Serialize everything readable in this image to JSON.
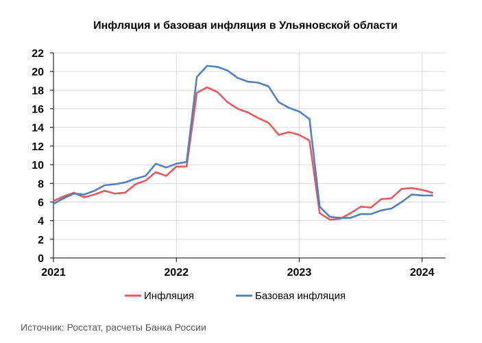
{
  "chart_data": {
    "type": "line",
    "title": "Инфляция и базовая инфляция в Ульяновской области",
    "xlabel": "",
    "ylabel": "",
    "ylim": [
      0,
      22
    ],
    "y_ticks": [
      "0",
      "2",
      "4",
      "6",
      "8",
      "10",
      "12",
      "14",
      "16",
      "18",
      "20",
      "22"
    ],
    "x_ticks": [
      {
        "label": "2021",
        "x": 0
      },
      {
        "label": "2022",
        "x": 12
      },
      {
        "label": "2023",
        "x": 24
      },
      {
        "label": "2024",
        "x": 36
      }
    ],
    "xlim": [
      0,
      38.3
    ],
    "grid": {
      "horizontal": true,
      "vertical": true
    },
    "legend_position": "bottom",
    "x": [
      0,
      1,
      2,
      3,
      4,
      5,
      6,
      7,
      8,
      9,
      10,
      11,
      12,
      13,
      14,
      15,
      16,
      17,
      18,
      19,
      20,
      21,
      22,
      23,
      24,
      25,
      26,
      27,
      28,
      29,
      30,
      31,
      32,
      33,
      34,
      35,
      36,
      37
    ],
    "series": [
      {
        "name": "Инфляция",
        "color": "#e8585f",
        "values": [
          6.1,
          6.6,
          7.0,
          6.5,
          6.8,
          7.2,
          6.9,
          7.0,
          7.9,
          8.3,
          9.2,
          8.8,
          9.8,
          9.8,
          17.7,
          18.3,
          17.8,
          16.7,
          16.0,
          15.6,
          15.0,
          14.5,
          13.2,
          13.5,
          13.2,
          12.6,
          4.8,
          4.1,
          4.2,
          4.8,
          5.5,
          5.4,
          6.3,
          6.4,
          7.4,
          7.5,
          7.3,
          7.0
        ]
      },
      {
        "name": "Базовая инфляция",
        "color": "#4f81bd",
        "values": [
          5.8,
          6.4,
          6.9,
          6.8,
          7.2,
          7.8,
          7.9,
          8.1,
          8.5,
          8.8,
          10.1,
          9.7,
          10.1,
          10.3,
          19.4,
          20.6,
          20.5,
          20.1,
          19.3,
          18.9,
          18.8,
          18.4,
          16.7,
          16.1,
          15.7,
          14.9,
          5.5,
          4.4,
          4.3,
          4.3,
          4.7,
          4.7,
          5.1,
          5.3,
          6.0,
          6.8,
          6.7,
          6.7
        ]
      }
    ],
    "source": "Источник: Росстат, расчеты Банка России"
  }
}
